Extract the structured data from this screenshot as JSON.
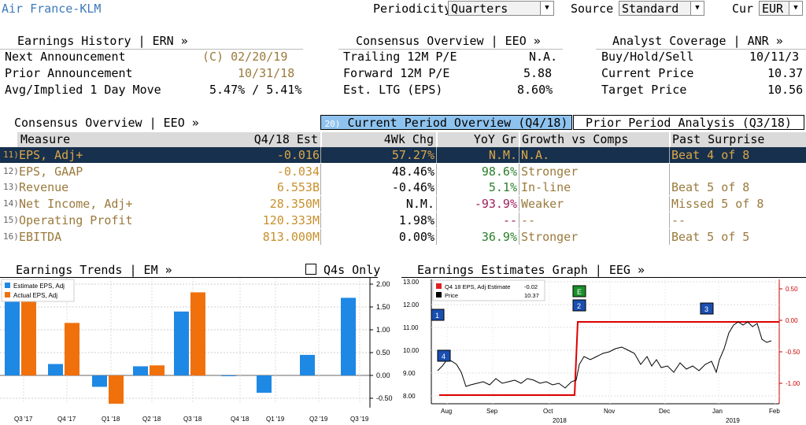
{
  "header": {
    "company": "Air France-KLM",
    "periodicity_label": "Periodicity",
    "periodicity_value": "Quarters",
    "source_label": "Source",
    "source_value": "Standard",
    "cur_label": "Cur",
    "cur_value": "EUR"
  },
  "earnings_history": {
    "title": "Earnings History | ERN »",
    "rows": [
      {
        "label": "Next Announcement",
        "value": "(C)  02/20/19"
      },
      {
        "label": "Prior Announcement",
        "value": "10/31/18"
      },
      {
        "label": "Avg/Implied 1 Day Move",
        "value": "5.47% / 5.41%"
      }
    ]
  },
  "consensus_top": {
    "title": "Consensus Overview | EEO »",
    "rows": [
      {
        "label": "Trailing 12M P/E",
        "value": "N.A."
      },
      {
        "label": "Forward 12M P/E",
        "value": "5.88"
      },
      {
        "label": "Est. LTG (EPS)",
        "value": "8.60%"
      }
    ]
  },
  "analyst": {
    "title": "Analyst Coverage | ANR »",
    "rows": [
      {
        "label": "Buy/Hold/Sell",
        "value": "10/11/3"
      },
      {
        "label": "Current Price",
        "value": "10.37"
      },
      {
        "label": "Target Price",
        "value": "10.56"
      }
    ]
  },
  "consensus_table": {
    "title": "Consensus Overview | EEO »",
    "tab_current_num": "20)",
    "tab_current": "Current Period Overview (Q4/18)",
    "tab_prior": "Prior Period Analysis (Q3/18)",
    "columns": [
      "Measure",
      "Q4/18 Est",
      "4Wk Chg",
      "YoY Gr",
      "Growth vs Comps",
      "Past Surprise"
    ],
    "rows": [
      {
        "n": "11)",
        "measure": "EPS, Adj+",
        "est": "-0.016",
        "chg": "57.27%",
        "yoy": "N.M.",
        "growth": "N.A.",
        "surprise": "Beat 4 of 8"
      },
      {
        "n": "12)",
        "measure": "EPS, GAAP",
        "est": "-0.034",
        "chg": "48.46%",
        "yoy": "98.6%",
        "growth": "Stronger",
        "surprise": ""
      },
      {
        "n": "13)",
        "measure": "Revenue",
        "est": "6.553B",
        "chg": "-0.46%",
        "yoy": "5.1%",
        "growth": "In-line",
        "surprise": "Beat 5 of 8"
      },
      {
        "n": "14)",
        "measure": "Net Income, Adj+",
        "est": "28.350M",
        "chg": "N.M.",
        "yoy": "-93.9%",
        "growth": "Weaker",
        "surprise": "Missed 5 of 8"
      },
      {
        "n": "15)",
        "measure": "Operating Profit",
        "est": "120.333M",
        "chg": "1.98%",
        "yoy": "--",
        "growth": "--",
        "surprise": "--"
      },
      {
        "n": "16)",
        "measure": "EBITDA",
        "est": "813.000M",
        "chg": "0.00%",
        "yoy": "36.9%",
        "growth": "Stronger",
        "surprise": "Beat 5 of 5"
      }
    ]
  },
  "trends": {
    "title": "Earnings Trends | EM »",
    "checkbox_label": "Q4s Only",
    "chart_data": {
      "type": "bar",
      "categories": [
        "Q3 '17",
        "Q4 '17",
        "Q1 '18",
        "Q2 '18",
        "Q3 '18",
        "Q4 '18",
        "Q1 '19",
        "Q2 '19",
        "Q3 '19"
      ],
      "series": [
        {
          "name": "Estimate EPS, Adj",
          "color": "#1e88e5",
          "values": [
            1.75,
            0.25,
            -0.25,
            0.2,
            1.4,
            -0.016,
            -0.38,
            0.45,
            1.7
          ]
        },
        {
          "name": "Actual EPS, Adj",
          "color": "#f0700c",
          "values": [
            1.75,
            1.15,
            -0.62,
            0.22,
            1.82,
            null,
            null,
            null,
            null
          ]
        }
      ],
      "ylim": [
        -0.6,
        2.0
      ],
      "yticks": [
        "2.00",
        "1.50",
        "1.00",
        "0.50",
        "0.00",
        "-0.50"
      ]
    }
  },
  "estimates_graph": {
    "title": "Earnings Estimates Graph | EEG »",
    "chart_data": {
      "type": "line",
      "series": [
        {
          "name": "Q4 18 EPS, Adj Estimate",
          "value": "-0.02",
          "color": "#e02020"
        },
        {
          "name": "Price",
          "value": "10.37",
          "color": "#000000"
        }
      ],
      "x_labels": [
        "Aug",
        "Sep",
        "Oct",
        "Nov",
        "Dec",
        "Jan",
        "Feb"
      ],
      "x_years": [
        "2018",
        "2019"
      ],
      "left_ticks": [
        "13.00",
        "12.00",
        "11.00",
        "10.00",
        "9.00",
        "8.00"
      ],
      "right_ticks": [
        "0.50",
        "0.00",
        "-0.50",
        "-1.00"
      ],
      "markers": [
        "1",
        "4",
        "2",
        "E",
        "3"
      ]
    }
  }
}
